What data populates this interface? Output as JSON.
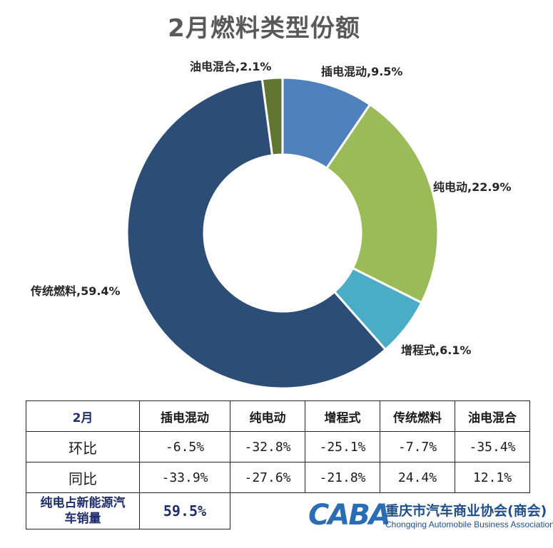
{
  "chart_data": {
    "type": "pie",
    "title": "2月燃料类型份额",
    "slices": [
      {
        "name": "插电混动",
        "value": 9.5,
        "label": "插电混动,9.5%",
        "color": "#4f81bd"
      },
      {
        "name": "纯电动",
        "value": 22.9,
        "label": "纯电动,22.9%",
        "color": "#9bbb59"
      },
      {
        "name": "增程式",
        "value": 6.1,
        "label": "增程式,6.1%",
        "color": "#4bacc6"
      },
      {
        "name": "传统燃料",
        "value": 59.4,
        "label": "传统燃料,59.4%",
        "color": "#2c4d75"
      },
      {
        "name": "油电混合",
        "value": 2.1,
        "label": "油电混合,2.1%",
        "color": "#5f7530"
      }
    ]
  },
  "table": {
    "header": [
      "2月",
      "插电混动",
      "纯电动",
      "增程式",
      "传统燃料",
      "油电混合"
    ],
    "rows": [
      {
        "label": "环比",
        "values": [
          "-6.5%",
          "-32.8%",
          "-25.1%",
          "-7.7%",
          "-35.4%"
        ]
      },
      {
        "label": "同比",
        "values": [
          "-33.9%",
          "-27.6%",
          "-21.8%",
          "24.4%",
          "12.1%"
        ]
      }
    ],
    "share_label_line1": "纯电占新能源汽",
    "share_label_line2": "车销量",
    "share_value": "59.5%"
  },
  "logo": {
    "mark": "CABA",
    "name_cn": "重庆市汽车商业协会(商会)",
    "name_en": "Chongqing Automobile Business Association"
  }
}
